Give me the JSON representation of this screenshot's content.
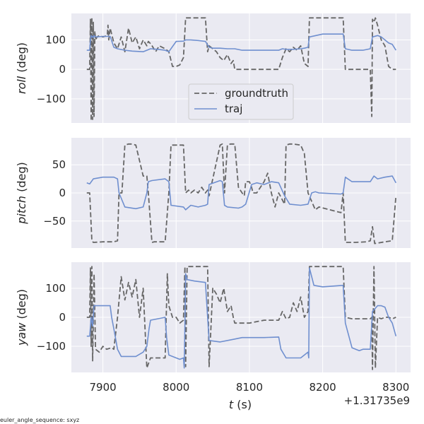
{
  "chart_data": {
    "type": "line",
    "xlabel_italic": "t",
    "xlabel_unit": " (s)",
    "x_offset_label": "+1.31735e9",
    "xlim": [
      7857,
      8320
    ],
    "xticks": [
      7900,
      8000,
      8100,
      8200,
      8300
    ],
    "xtick_labels": [
      "7900",
      "8000",
      "8100",
      "8200",
      "8300"
    ],
    "footnote": "euler_angle_sequence: sxyz",
    "colors": {
      "groundtruth": "#666666",
      "traj": "#6f8fcf"
    },
    "legend": {
      "position": "center-left of top panel",
      "entries": [
        {
          "key": "groundtruth",
          "label": "groundtruth",
          "style": "dashed"
        },
        {
          "key": "traj",
          "label": "traj",
          "style": "solid"
        }
      ]
    },
    "panels": [
      {
        "name": "roll",
        "ylabel_italic": "roll",
        "ylabel_unit": " (deg)",
        "ylim": [
          -182,
          190
        ],
        "yticks": [
          -100,
          0,
          100
        ],
        "ytick_labels": [
          "−100",
          "0",
          "100"
        ],
        "series": [
          {
            "name": "groundtruth",
            "x": [
              7878,
              7882,
              7883,
              7884,
              7885,
              7886,
              7887,
              7888,
              7889,
              7890,
              7892,
              7895,
              7900,
              7906,
              7907,
              7908,
              7910,
              7915,
              7920,
              7925,
              7930,
              7935,
              7940,
              7945,
              7950,
              7955,
              7960,
              7962,
              7966,
              7972,
              7977,
              7985,
              7990,
              7995,
              8000,
              8005,
              8010,
              8013,
              8015,
              8025,
              8040,
              8043,
              8045,
              8050,
              8055,
              8060,
              8065,
              8070,
              8075,
              8078,
              8080,
              8085,
              8090,
              8095,
              8100,
              8120,
              8140,
              8145,
              8150,
              8155,
              8160,
              8165,
              8170,
              8175,
              8180,
              8182,
              8200,
              8228,
              8231,
              8240,
              8255,
              8265,
              8267,
              8268,
              8270,
              8272,
              8275,
              8280,
              8285,
              8290,
              8295,
              8300
            ],
            "y": [
              0,
              0,
              170,
              -175,
              175,
              -170,
              160,
              -160,
              130,
              100,
              110,
              115,
              110,
              115,
              150,
              100,
              140,
              90,
              70,
              110,
              60,
              140,
              90,
              110,
              70,
              100,
              80,
              95,
              85,
              60,
              80,
              70,
              60,
              10,
              10,
              15,
              40,
              175,
              175,
              175,
              175,
              60,
              80,
              70,
              60,
              40,
              30,
              50,
              20,
              30,
              0,
              0,
              0,
              0,
              0,
              0,
              0,
              40,
              70,
              60,
              75,
              65,
              80,
              20,
              10,
              175,
              175,
              175,
              0,
              0,
              0,
              0,
              -160,
              170,
              160,
              175,
              150,
              100,
              80,
              10,
              0,
              0
            ]
          },
          {
            "name": "traj",
            "x": [
              7878,
              7882,
              7883,
              7884,
              7885,
              7886,
              7887,
              7888,
              7890,
              7900,
              7910,
              7915,
              7920,
              7930,
              7940,
              7955,
              7960,
              7965,
              7975,
              7985,
              7990,
              8000,
              8010,
              8013,
              8020,
              8030,
              8040,
              8045,
              8050,
              8060,
              8070,
              8080,
              8090,
              8100,
              8120,
              8140,
              8145,
              8150,
              8160,
              8170,
              8175,
              8180,
              8182,
              8200,
              8228,
              8231,
              8240,
              8255,
              8265,
              8268,
              8275,
              8280,
              8285,
              8290,
              8295,
              8300
            ],
            "y": [
              65,
              65,
              100,
              115,
              110,
              112,
              108,
              115,
              110,
              112,
              112,
              75,
              70,
              65,
              62,
              60,
              65,
              70,
              68,
              65,
              60,
              95,
              96,
              100,
              100,
              98,
              95,
              75,
              72,
              72,
              70,
              70,
              65,
              65,
              65,
              65,
              70,
              68,
              68,
              70,
              72,
              75,
              110,
              120,
              120,
              70,
              65,
              65,
              70,
              110,
              115,
              110,
              100,
              90,
              85,
              65
            ]
          }
        ]
      },
      {
        "name": "pitch",
        "ylabel_italic": "pitch",
        "ylabel_unit": " (deg)",
        "ylim": [
          -98,
          98
        ],
        "yticks": [
          -50,
          0,
          50
        ],
        "ytick_labels": [
          "−50",
          "0",
          "50"
        ],
        "series": [
          {
            "name": "groundtruth",
            "x": [
              7878,
              7882,
              7885,
              7887,
              7900,
              7915,
              7920,
              7922,
              7926,
              7930,
              7935,
              7940,
              7945,
              7955,
              7960,
              7962,
              7967,
              7970,
              7985,
              7990,
              7993,
              8010,
              8013,
              8017,
              8020,
              8025,
              8030,
              8035,
              8040,
              8043,
              8045,
              8060,
              8063,
              8066,
              8070,
              8074,
              8080,
              8085,
              8090,
              8093,
              8095,
              8100,
              8103,
              8105,
              8110,
              8120,
              8125,
              8130,
              8135,
              8140,
              8148,
              8150,
              8155,
              8160,
              8170,
              8175,
              8180,
              8185,
              8190,
              8195,
              8225,
              8228,
              8231,
              8245,
              8260,
              8265,
              8268,
              8271,
              8285,
              8295,
              8300
            ],
            "y": [
              0,
              0,
              -85,
              -88,
              -87,
              -87,
              -85,
              0,
              0,
              85,
              87,
              87,
              85,
              30,
              30,
              0,
              -88,
              -87,
              -87,
              0,
              85,
              85,
              0,
              5,
              0,
              5,
              0,
              10,
              0,
              5,
              -5,
              85,
              87,
              0,
              85,
              87,
              87,
              10,
              0,
              -5,
              20,
              20,
              10,
              0,
              0,
              20,
              35,
              0,
              -25,
              0,
              -20,
              85,
              87,
              87,
              85,
              70,
              0,
              -15,
              -30,
              -25,
              -35,
              0,
              -88,
              -88,
              -87,
              -85,
              -60,
              -90,
              -87,
              -85,
              -5
            ]
          },
          {
            "name": "traj",
            "x": [
              7878,
              7882,
              7887,
              7900,
              7915,
              7920,
              7922,
              7930,
              7945,
              7955,
              7960,
              7962,
              7967,
              7985,
              7990,
              7993,
              8010,
              8013,
              8020,
              8030,
              8040,
              8043,
              8045,
              8060,
              8063,
              8066,
              8070,
              8085,
              8090,
              8095,
              8103,
              8110,
              8120,
              8130,
              8140,
              8148,
              8155,
              8170,
              8180,
              8185,
              8190,
              8195,
              8225,
              8228,
              8231,
              8240,
              8255,
              8265,
              8270,
              8275,
              8285,
              8295,
              8300
            ],
            "y": [
              18,
              16,
              25,
              28,
              28,
              25,
              0,
              -25,
              -28,
              -25,
              0,
              20,
              22,
              25,
              20,
              -22,
              -25,
              -30,
              -22,
              -25,
              -22,
              -20,
              15,
              22,
              20,
              -22,
              -25,
              -27,
              -25,
              -20,
              15,
              18,
              15,
              20,
              18,
              -5,
              -20,
              -22,
              -20,
              0,
              2,
              0,
              -2,
              0,
              28,
              20,
              20,
              20,
              30,
              25,
              28,
              30,
              18
            ]
          }
        ]
      },
      {
        "name": "yaw",
        "ylabel_italic": "yaw",
        "ylabel_unit": " (deg)",
        "ylim": [
          -190,
          190
        ],
        "yticks": [
          -100,
          0,
          100
        ],
        "ytick_labels": [
          "−100",
          "0",
          "100"
        ],
        "series": [
          {
            "name": "groundtruth",
            "x": [
              7878,
              7882,
              7883,
              7884,
              7885,
              7886,
              7888,
              7890,
              7895,
              7900,
              7905,
              7912,
              7915,
              7920,
              7925,
              7930,
              7935,
              7940,
              7945,
              7950,
              7955,
              7960,
              7965,
              7975,
              7985,
              7988,
              7990,
              7995,
              8000,
              8005,
              8010,
              8012,
              8013,
              8015,
              8040,
              8043,
              8045,
              8050,
              8055,
              8060,
              8065,
              8070,
              8075,
              8078,
              8080,
              8100,
              8120,
              8140,
              8145,
              8150,
              8155,
              8160,
              8165,
              8170,
              8175,
              8180,
              8182,
              8200,
              8228,
              8231,
              8240,
              8255,
              8265,
              8267,
              8268,
              8270,
              8272,
              8275,
              8280,
              8285,
              8290,
              8295,
              8300
            ],
            "y": [
              0,
              0,
              170,
              -100,
              175,
              -150,
              150,
              -110,
              -120,
              -100,
              -110,
              -105,
              -110,
              0,
              140,
              60,
              120,
              70,
              130,
              0,
              100,
              -175,
              -140,
              -140,
              -140,
              150,
              40,
              0,
              0,
              -20,
              -10,
              175,
              -170,
              175,
              175,
              175,
              -170,
              100,
              80,
              50,
              100,
              20,
              40,
              0,
              -20,
              -20,
              -10,
              -10,
              20,
              -5,
              0,
              50,
              20,
              70,
              0,
              20,
              175,
              175,
              175,
              0,
              -5,
              -5,
              -5,
              0,
              -180,
              175,
              -175,
              0,
              -5,
              0,
              0,
              -5,
              0
            ]
          },
          {
            "name": "traj",
            "x": [
              7878,
              7882,
              7884,
              7886,
              7888,
              7900,
              7910,
              7912,
              7915,
              7920,
              7925,
              7935,
              7945,
              7955,
              7960,
              7963,
              7965,
              7975,
              7985,
              7987,
              7990,
              8005,
              8010,
              8011,
              8012,
              8013,
              8015,
              8025,
              8040,
              8043,
              8045,
              8060,
              8080,
              8090,
              8100,
              8120,
              8140,
              8143,
              8150,
              8170,
              8180,
              8181,
              8182,
              8188,
              8200,
              8228,
              8231,
              8240,
              8250,
              8255,
              8265,
              8268,
              8275,
              8280,
              8285,
              8290,
              8295,
              8300
            ],
            "y": [
              -65,
              -65,
              0,
              -30,
              40,
              40,
              40,
              0,
              -40,
              -110,
              -135,
              -135,
              -135,
              -120,
              -100,
              -40,
              -10,
              -5,
              0,
              -70,
              -130,
              -145,
              -140,
              -175,
              -20,
              150,
              130,
              125,
              120,
              0,
              -80,
              -85,
              -75,
              -70,
              -70,
              -70,
              -68,
              -110,
              -140,
              -140,
              -120,
              -140,
              170,
              110,
              105,
              110,
              -20,
              -105,
              -115,
              -110,
              -110,
              20,
              40,
              40,
              35,
              0,
              -20,
              -65
            ]
          }
        ]
      }
    ]
  }
}
